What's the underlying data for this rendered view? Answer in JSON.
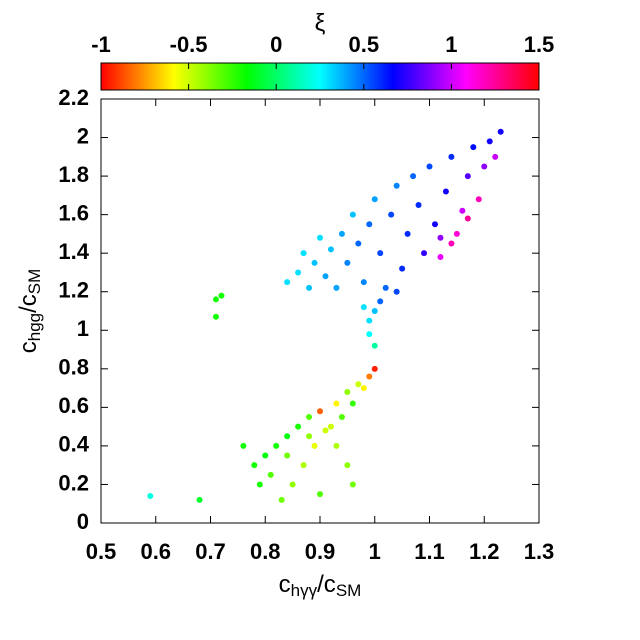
{
  "chart_data": {
    "type": "scatter",
    "colorbar_label": "ξ",
    "xlabel": [
      "c",
      "hγγ",
      "/c",
      "SM"
    ],
    "ylabel": [
      "c",
      "hgg",
      "/c",
      "SM"
    ],
    "xlim": [
      0.5,
      1.3
    ],
    "xticks": [
      0.5,
      0.6,
      0.7,
      0.8,
      0.9,
      1,
      1.1,
      1.2,
      1.3
    ],
    "ylim": [
      0,
      2.2
    ],
    "yticks": [
      0,
      0.2,
      0.4,
      0.6,
      0.8,
      1,
      1.2,
      1.4,
      1.6,
      1.8,
      2,
      2.2
    ],
    "zlim": [
      -1,
      1.5
    ],
    "zticks": [
      -1,
      -0.5,
      0,
      0.5,
      1,
      1.5
    ],
    "colormap": "hsv",
    "x": [
      0.84,
      0.86,
      0.88,
      0.89,
      0.91,
      0.92,
      0.93,
      0.94,
      0.95,
      0.96,
      0.97,
      0.98,
      0.99,
      1.0,
      1.01,
      1.02,
      1.03,
      1.04,
      1.05,
      1.06,
      1.07,
      1.08,
      1.09,
      1.1,
      1.11,
      1.12,
      1.13,
      1.14,
      1.15,
      1.16,
      1.17,
      1.18,
      1.19,
      1.2,
      1.21,
      1.22,
      1.23,
      1.17,
      1.14,
      1.12,
      0.87,
      0.9,
      1.04,
      0.98,
      0.99,
      1.0,
      1.01,
      0.99,
      1.0,
      1.0,
      0.99,
      0.97,
      0.95,
      0.93,
      0.9,
      0.88,
      0.86,
      0.84,
      0.82,
      0.8,
      0.78,
      0.76,
      0.91,
      0.93,
      0.95,
      0.96,
      0.89,
      0.87,
      0.85,
      0.83,
      0.9,
      0.92,
      0.94,
      0.96,
      0.98,
      0.81,
      0.79,
      0.84,
      0.88,
      0.59,
      0.68,
      0.72,
      0.71,
      0.71
    ],
    "y": [
      1.25,
      1.3,
      1.22,
      1.35,
      1.28,
      1.42,
      1.22,
      1.5,
      1.35,
      1.6,
      1.45,
      1.25,
      1.55,
      1.68,
      1.4,
      1.22,
      1.6,
      1.75,
      1.32,
      1.5,
      1.8,
      1.65,
      1.4,
      1.85,
      1.55,
      1.48,
      1.72,
      1.9,
      1.5,
      1.62,
      1.8,
      1.95,
      1.68,
      1.85,
      1.98,
      1.9,
      2.03,
      1.58,
      1.45,
      1.38,
      1.4,
      1.48,
      1.2,
      1.12,
      1.05,
      1.1,
      1.15,
      0.98,
      0.92,
      0.8,
      0.76,
      0.72,
      0.68,
      0.62,
      0.58,
      0.55,
      0.5,
      0.45,
      0.4,
      0.35,
      0.3,
      0.4,
      0.48,
      0.4,
      0.3,
      0.2,
      0.4,
      0.3,
      0.2,
      0.12,
      0.15,
      0.5,
      0.55,
      0.62,
      0.7,
      0.25,
      0.2,
      0.35,
      0.45,
      0.14,
      0.12,
      1.18,
      1.07,
      1.16
    ],
    "z": [
      0.3,
      0.3,
      0.35,
      0.35,
      0.4,
      0.35,
      0.4,
      0.4,
      0.45,
      0.35,
      0.5,
      0.45,
      0.5,
      0.4,
      0.55,
      0.5,
      0.55,
      0.45,
      0.6,
      0.6,
      0.5,
      0.6,
      0.75,
      0.55,
      0.7,
      0.9,
      0.7,
      0.6,
      1.15,
      1.0,
      0.8,
      0.65,
      1.2,
      0.9,
      0.7,
      1.0,
      0.7,
      1.25,
      1.2,
      1.05,
      0.3,
      0.3,
      0.55,
      0.3,
      0.3,
      0.35,
      0.5,
      0.25,
      0.1,
      -0.95,
      -0.8,
      -0.5,
      -0.4,
      -0.6,
      -0.85,
      -0.3,
      -0.2,
      -0.15,
      -0.2,
      -0.15,
      -0.2,
      -0.2,
      -0.5,
      -0.45,
      -0.4,
      -0.35,
      -0.55,
      -0.45,
      -0.4,
      -0.35,
      -0.3,
      -0.5,
      -0.3,
      -0.25,
      -0.6,
      -0.3,
      -0.2,
      -0.35,
      -0.4,
      0.2,
      -0.1,
      -0.2,
      -0.2,
      -0.2
    ]
  }
}
